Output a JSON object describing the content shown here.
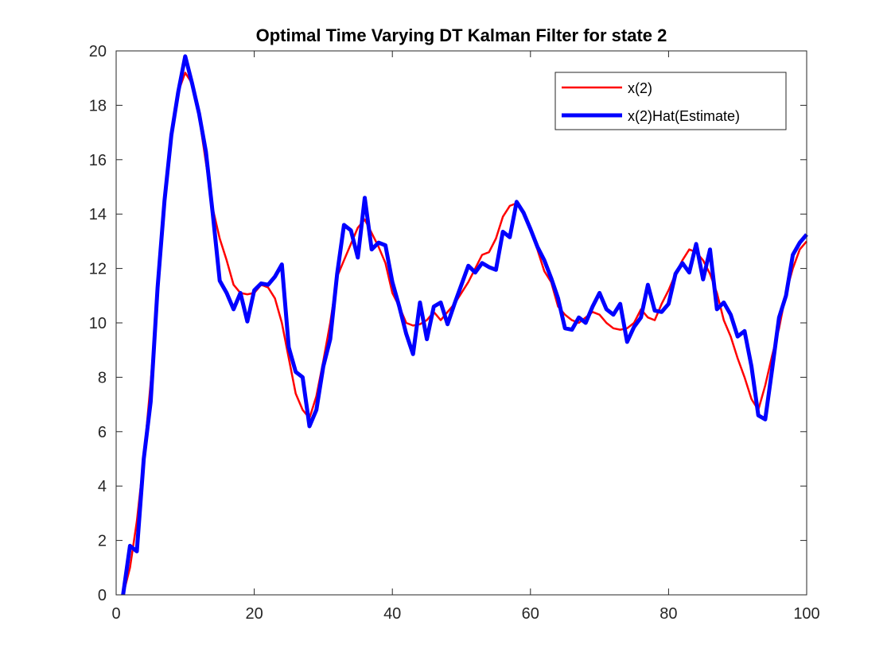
{
  "chart_data": {
    "type": "line",
    "title": "Optimal Time Varying DT Kalman Filter for state 2",
    "xlabel": "",
    "ylabel": "",
    "xlim": [
      0,
      100
    ],
    "ylim": [
      0,
      20
    ],
    "x_ticks": [
      "0",
      "20",
      "40",
      "60",
      "80",
      "100"
    ],
    "y_ticks": [
      "0",
      "2",
      "4",
      "6",
      "8",
      "10",
      "12",
      "14",
      "16",
      "18",
      "20"
    ],
    "grid": false,
    "legend_position": "top-right",
    "x": [
      1,
      2,
      3,
      4,
      5,
      6,
      7,
      8,
      9,
      10,
      11,
      12,
      13,
      14,
      15,
      16,
      17,
      18,
      19,
      20,
      21,
      22,
      23,
      24,
      25,
      26,
      27,
      28,
      29,
      30,
      31,
      32,
      33,
      34,
      35,
      36,
      37,
      38,
      39,
      40,
      41,
      42,
      43,
      44,
      45,
      46,
      47,
      48,
      49,
      50,
      51,
      52,
      53,
      54,
      55,
      56,
      57,
      58,
      59,
      60,
      61,
      62,
      63,
      64,
      65,
      66,
      67,
      68,
      69,
      70,
      71,
      72,
      73,
      74,
      75,
      76,
      77,
      78,
      79,
      80,
      81,
      82,
      83,
      84,
      85,
      86,
      87,
      88,
      89,
      90,
      91,
      92,
      93,
      94,
      95,
      96,
      97,
      98,
      99,
      100
    ],
    "series": [
      {
        "name": "x(2)",
        "color": "#ff0000",
        "line_width": 2.5,
        "values": [
          0,
          1.0,
          2.7,
          5.0,
          7.8,
          11.0,
          14.6,
          17.0,
          18.5,
          19.2,
          18.8,
          17.6,
          15.9,
          14.2,
          13.1,
          12.3,
          11.4,
          11.1,
          11.05,
          11.1,
          11.4,
          11.3,
          10.9,
          10.0,
          8.7,
          7.4,
          6.8,
          6.5,
          7.3,
          8.6,
          10.0,
          11.7,
          12.3,
          12.9,
          13.5,
          13.8,
          13.3,
          12.8,
          12.2,
          11.1,
          10.6,
          10.0,
          9.9,
          9.95,
          10.1,
          10.4,
          10.1,
          10.4,
          10.7,
          11.1,
          11.5,
          12.0,
          12.5,
          12.6,
          13.1,
          13.9,
          14.3,
          14.4,
          14.0,
          13.4,
          12.7,
          11.9,
          11.5,
          10.6,
          10.3,
          10.1,
          10.0,
          10.2,
          10.4,
          10.3,
          10.0,
          9.8,
          9.75,
          9.8,
          10.0,
          10.5,
          10.2,
          10.1,
          10.7,
          11.2,
          11.8,
          12.3,
          12.7,
          12.6,
          12.3,
          11.8,
          11.1,
          10.1,
          9.5,
          8.7,
          8.0,
          7.2,
          6.8,
          7.7,
          8.8,
          9.8,
          11.1,
          12.0,
          12.7,
          13.0
        ]
      },
      {
        "name": "x(2)Hat(Estimate)",
        "color": "#0000ff",
        "line_width": 5,
        "values": [
          0,
          1.8,
          1.6,
          5.0,
          7.1,
          11.3,
          14.5,
          16.9,
          18.5,
          19.8,
          18.8,
          17.7,
          16.3,
          14.0,
          11.55,
          11.1,
          10.5,
          11.1,
          10.05,
          11.2,
          11.45,
          11.4,
          11.7,
          12.15,
          9.1,
          8.2,
          8.0,
          6.2,
          6.8,
          8.4,
          9.4,
          11.8,
          13.6,
          13.4,
          12.4,
          14.6,
          12.7,
          12.95,
          12.85,
          11.5,
          10.6,
          9.6,
          8.85,
          10.75,
          9.4,
          10.6,
          10.75,
          9.95,
          10.7,
          11.4,
          12.1,
          11.85,
          12.2,
          12.05,
          11.95,
          13.35,
          13.15,
          14.45,
          14.05,
          13.45,
          12.8,
          12.3,
          11.65,
          10.9,
          9.8,
          9.75,
          10.2,
          10.0,
          10.6,
          11.1,
          10.5,
          10.3,
          10.7,
          9.3,
          9.85,
          10.2,
          11.4,
          10.45,
          10.4,
          10.7,
          11.8,
          12.2,
          11.85,
          12.9,
          11.6,
          12.7,
          10.5,
          10.75,
          10.3,
          9.5,
          9.7,
          8.4,
          6.6,
          6.45,
          8.3,
          10.2,
          11.0,
          12.5,
          12.95,
          13.25
        ]
      }
    ]
  }
}
